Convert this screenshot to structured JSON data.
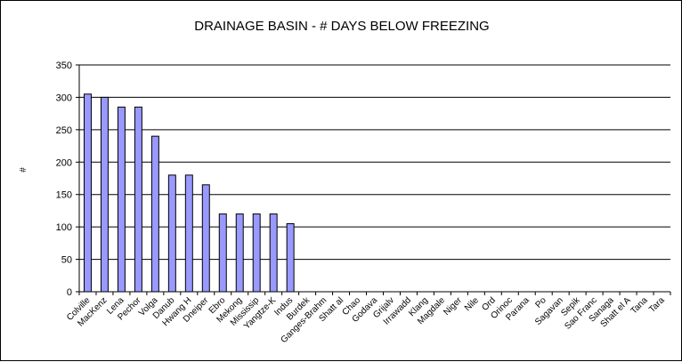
{
  "chart_data": {
    "type": "bar",
    "title": "DRAINAGE BASIN - # DAYS BELOW FREEZING",
    "ylabel": "#",
    "xlabel": "",
    "ylim": [
      0,
      350
    ],
    "yticks": [
      0,
      50,
      100,
      150,
      200,
      250,
      300,
      350
    ],
    "grid": true,
    "legend": "none",
    "bar_color": "#9999ff",
    "bar_stroke": "#000000",
    "categories": [
      "Colville",
      "MacKenz",
      "Lena",
      "Pechor",
      "Volga",
      "Danub",
      "Hwang H",
      "Dneiper",
      "Ebro",
      "Mekong",
      "Mississip",
      "Yangtze-K",
      "Indus",
      "Burdek",
      "Ganges-Brahm",
      "Shatt al",
      "Chao",
      "Godava",
      "Grijalv",
      "Irrawadd",
      "Klang",
      "Magdale",
      "Niger",
      "Nile",
      "Ord",
      "Orinoc",
      "Parana",
      "Po",
      "Sagavan",
      "Sepik",
      "Sao Franc",
      "Sanaga",
      "Shatt el A",
      "Tana",
      "Tara"
    ],
    "values": [
      305,
      300,
      285,
      285,
      240,
      180,
      180,
      165,
      120,
      120,
      120,
      120,
      105,
      0,
      0,
      0,
      0,
      0,
      0,
      0,
      0,
      0,
      0,
      0,
      0,
      0,
      0,
      0,
      0,
      0,
      0,
      0,
      0,
      0,
      0
    ]
  }
}
